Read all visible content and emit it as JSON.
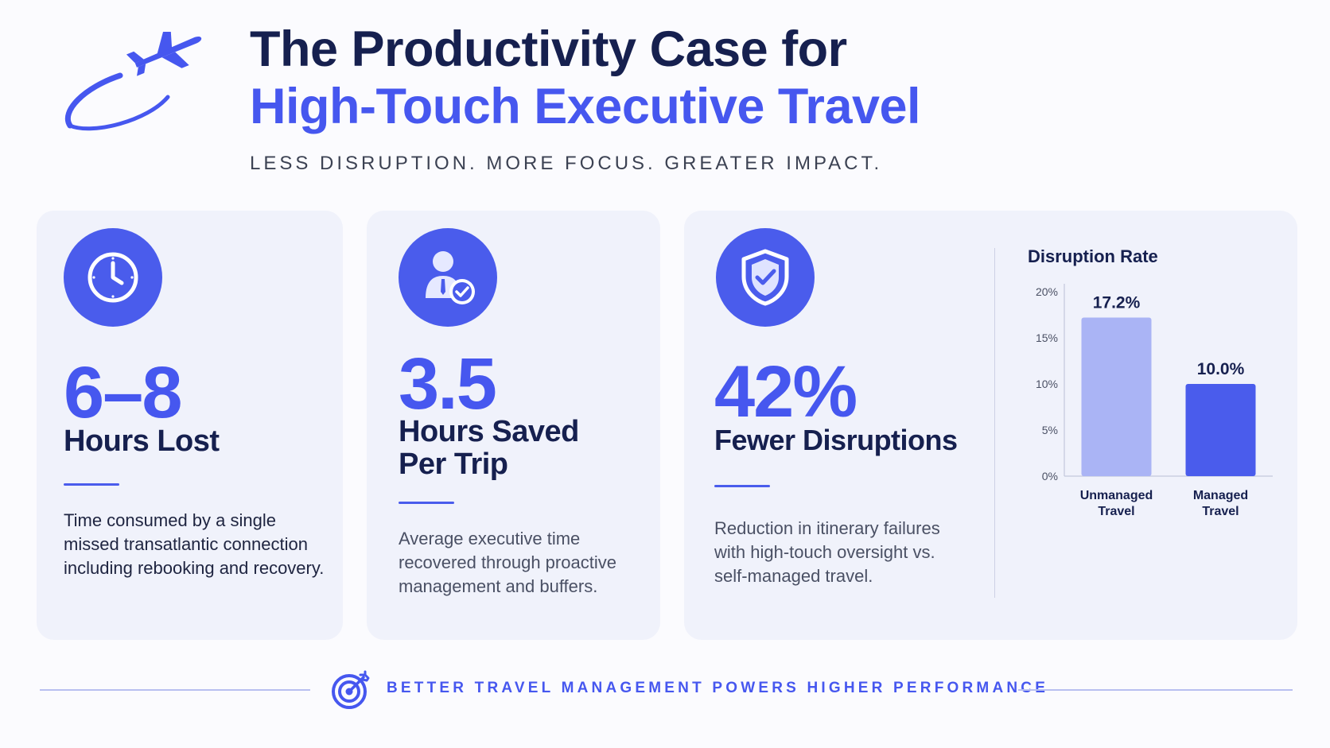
{
  "header": {
    "title_line1": "The Productivity Case for",
    "title_line2": "High-Touch Executive Travel",
    "subtitle": "LESS DISRUPTION. MORE FOCUS. GREATER IMPACT.",
    "logo_icon": "airplane-icon"
  },
  "cards": [
    {
      "icon": "clock-icon",
      "stat": "6–8",
      "label": "Hours Lost",
      "description": "Time consumed by a single missed transatlantic connection including rebooking and recovery."
    },
    {
      "icon": "executive-check-icon",
      "stat": "3.5",
      "label_line1": "Hours Saved",
      "label_line2": "Per Trip",
      "description": "Average executive time recovered through proactive management and buffers."
    },
    {
      "icon": "shield-check-icon",
      "stat": "42%",
      "label": "Fewer Disruptions",
      "description": "Reduction in itinerary failures with high-touch oversight vs. self-managed travel."
    }
  ],
  "chart_data": {
    "type": "bar",
    "title": "Disruption Rate",
    "categories": [
      "Unmanaged Travel",
      "Managed Travel"
    ],
    "category_lines": [
      [
        "Unmanaged",
        "Travel"
      ],
      [
        "Managed",
        "Travel"
      ]
    ],
    "values": [
      17.2,
      10.0
    ],
    "value_labels": [
      "17.2%",
      "10.0%"
    ],
    "yticks": [
      "0%",
      "5%",
      "10%",
      "15%",
      "20%"
    ],
    "ytick_values": [
      0,
      5,
      10,
      15,
      20
    ],
    "ylim": [
      0,
      20
    ],
    "bar_colors": [
      "#aab4f5",
      "#4a5cec"
    ],
    "grid": false
  },
  "footer": {
    "text": "BETTER TRAVEL MANAGEMENT POWERS HIGHER PERFORMANCE",
    "icon": "target-icon"
  },
  "colors": {
    "accent": "#4657ef",
    "navy": "#16204f",
    "card_bg": "#f0f2fb"
  }
}
